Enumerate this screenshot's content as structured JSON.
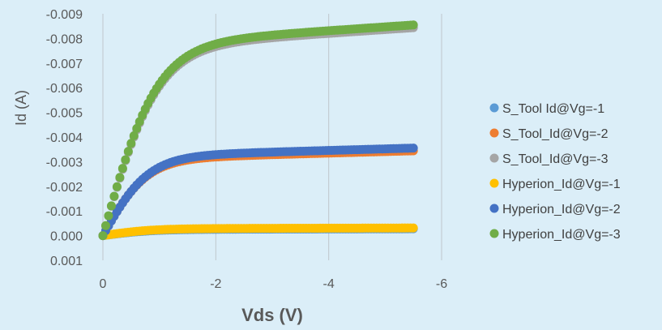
{
  "chart_data": {
    "type": "scatter",
    "xlabel": "Vds (V)",
    "ylabel": "Id (A)",
    "xlim": [
      0,
      -6
    ],
    "ylim": [
      0.001,
      -0.009
    ],
    "x_ticks": [
      "0",
      "-2",
      "-4",
      "-6"
    ],
    "y_ticks": [
      "0.001",
      "0.000",
      "-0.001",
      "-0.002",
      "-0.003",
      "-0.004",
      "-0.005",
      "-0.006",
      "-0.007",
      "-0.008",
      "-0.009"
    ],
    "grid": "vertical",
    "legend_position": "right",
    "series": [
      {
        "name": "S_Tool Id@Vg=-1",
        "color": "#5b9bd5",
        "Isat": -0.00025,
        "k": 1.2
      },
      {
        "name": "S_Tool_Id@Vg=-2",
        "color": "#ed7d31",
        "Isat": -0.0031,
        "k": 1.3
      },
      {
        "name": "S_Tool_Id@Vg=-3",
        "color": "#a5a5a5",
        "Isat": -0.0076,
        "k": 1.05
      },
      {
        "name": "Hyperion_Id@Vg=-1",
        "color": "#ffc000",
        "Isat": -0.00028,
        "k": 1.2
      },
      {
        "name": "Hyperion_Id@Vg=-2",
        "color": "#4472c4",
        "Isat": -0.0032,
        "k": 1.25
      },
      {
        "name": "Hyperion_Id@Vg=-3",
        "color": "#70ad47",
        "Isat": -0.0077,
        "k": 1.05
      }
    ]
  }
}
